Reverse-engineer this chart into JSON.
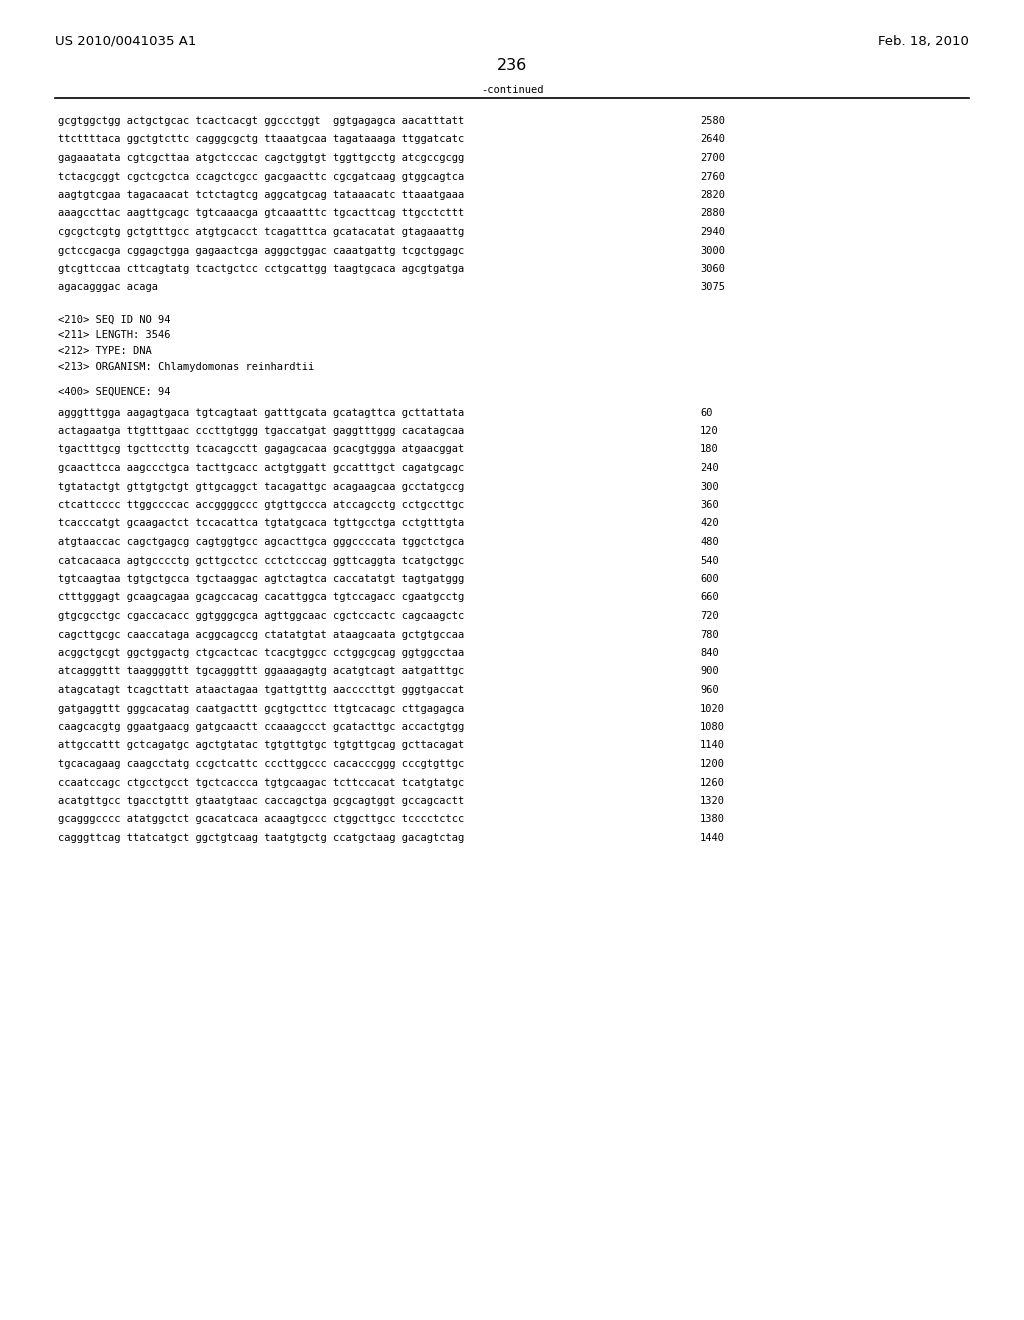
{
  "header_left": "US 2010/0041035 A1",
  "header_right": "Feb. 18, 2010",
  "page_number": "236",
  "continued_label": "-continued",
  "background_color": "#ffffff",
  "text_color": "#000000",
  "continued_section": [
    [
      "gcgtggctgg actgctgcac tcactcacgt ggccctggt  ggtgagagca aacatttatt",
      "2580"
    ],
    [
      "ttcttttaca ggctgtcttc cagggcgctg ttaaatgcaa tagataaaga ttggatcatc",
      "2640"
    ],
    [
      "gagaaatata cgtcgcttaa atgctcccac cagctggtgt tggttgcctg atcgccgcgg",
      "2700"
    ],
    [
      "tctacgcggt cgctcgctca ccagctcgcc gacgaacttc cgcgatcaag gtggcagtca",
      "2760"
    ],
    [
      "aagtgtcgaa tagacaacat tctctagtcg aggcatgcag tataaacatc ttaaatgaaa",
      "2820"
    ],
    [
      "aaagccttac aagttgcagc tgtcaaacga gtcaaatttc tgcacttcag ttgcctcttt",
      "2880"
    ],
    [
      "cgcgctcgtg gctgtttgcc atgtgcacct tcagatttca gcatacatat gtagaaattg",
      "2940"
    ],
    [
      "gctccgacga cggagctgga gagaactcga agggctggac caaatgattg tcgctggagc",
      "3000"
    ],
    [
      "gtcgttccaa cttcagtatg tcactgctcc cctgcattgg taagtgcaca agcgtgatga",
      "3060"
    ],
    [
      "agacagggac acaga",
      "3075"
    ]
  ],
  "metadata": [
    "<210> SEQ ID NO 94",
    "<211> LENGTH: 3546",
    "<212> TYPE: DNA",
    "<213> ORGANISM: Chlamydomonas reinhardtii"
  ],
  "sequence_label": "<400> SEQUENCE: 94",
  "sequence_lines": [
    [
      "agggtttgga aagagtgaca tgtcagtaat gatttgcata gcatagttca gcttattata",
      "60"
    ],
    [
      "actagaatga ttgtttgaac cccttgtggg tgaccatgat gaggtttggg cacatagcaa",
      "120"
    ],
    [
      "tgactttgcg tgcttccttg tcacagcctt gagagcacaa gcacgtggga atgaacggat",
      "180"
    ],
    [
      "gcaacttcca aagccctgca tacttgcacc actgtggatt gccatttgct cagatgcagc",
      "240"
    ],
    [
      "tgtatactgt gttgtgctgt gttgcaggct tacagattgc acagaagcaa gcctatgccg",
      "300"
    ],
    [
      "ctcattcccc ttggccccac accggggccc gtgttgccca atccagcctg cctgccttgc",
      "360"
    ],
    [
      "tcacccatgt gcaagactct tccacattca tgtatgcaca tgttgcctga cctgtttgta",
      "420"
    ],
    [
      "atgtaaccac cagctgagcg cagtggtgcc agcacttgca gggccccata tggctctgca",
      "480"
    ],
    [
      "catcacaaca agtgcccctg gcttgcctcc cctctcccag ggttcaggta tcatgctggc",
      "540"
    ],
    [
      "tgtcaagtaa tgtgctgcca tgctaaggac agtctagtca caccatatgt tagtgatggg",
      "600"
    ],
    [
      "ctttgggagt gcaagcagaa gcagccacag cacattggca tgtccagacc cgaatgcctg",
      "660"
    ],
    [
      "gtgcgcctgc cgaccacacc ggtgggcgca agttggcaac cgctccactc cagcaagctc",
      "720"
    ],
    [
      "cagcttgcgc caaccataga acggcagccg ctatatgtat ataagcaata gctgtgccaa",
      "780"
    ],
    [
      "acggctgcgt ggctggactg ctgcactcac tcacgtggcc cctggcgcag ggtggcctaa",
      "840"
    ],
    [
      "atcagggttt taaggggttt tgcagggttt ggaaagagtg acatgtcagt aatgatttgc",
      "900"
    ],
    [
      "atagcatagt tcagcttatt ataactagaa tgattgtttg aaccccttgt gggtgaccat",
      "960"
    ],
    [
      "gatgaggttt gggcacatag caatgacttt gcgtgcttcc ttgtcacagc cttgagagca",
      "1020"
    ],
    [
      "caagcacgtg ggaatgaacg gatgcaactt ccaaagccct gcatacttgc accactgtgg",
      "1080"
    ],
    [
      "attgccattt gctcagatgc agctgtatac tgtgttgtgc tgtgttgcag gcttacagat",
      "1140"
    ],
    [
      "tgcacagaag caagcctatg ccgctcattc cccttggccc cacacccggg cccgtgttgc",
      "1200"
    ],
    [
      "ccaatccagc ctgcctgcct tgctcaccca tgtgcaagac tcttccacat tcatgtatgc",
      "1260"
    ],
    [
      "acatgttgcc tgacctgttt gtaatgtaac caccagctga gcgcagtggt gccagcactt",
      "1320"
    ],
    [
      "gcagggcccc atatggctct gcacatcaca acaagtgccc ctggcttgcc tcccctctcc",
      "1380"
    ],
    [
      "cagggttcag ttatcatgct ggctgtcaag taatgtgctg ccatgctaag gacagtctag",
      "1440"
    ]
  ]
}
